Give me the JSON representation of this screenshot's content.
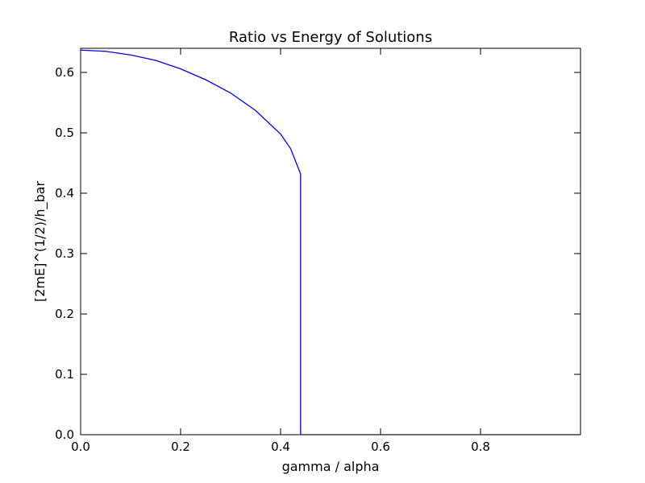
{
  "chart_data": {
    "type": "line",
    "title": "Ratio vs Energy of Solutions",
    "xlabel": "gamma / alpha",
    "ylabel": "[2mE]^(1/2)/h_bar",
    "xlim": [
      0.0,
      1.0
    ],
    "ylim": [
      0.0,
      0.64
    ],
    "x_ticks": [
      0.0,
      0.2,
      0.4,
      0.6,
      0.8
    ],
    "x_tick_labels": [
      "0.0",
      "0.2",
      "0.4",
      "0.6",
      "0.8"
    ],
    "y_ticks": [
      0.0,
      0.1,
      0.2,
      0.3,
      0.4,
      0.5,
      0.6
    ],
    "y_tick_labels": [
      "0.0",
      "0.1",
      "0.2",
      "0.3",
      "0.4",
      "0.5",
      "0.6"
    ],
    "grid": false,
    "legend": "none",
    "colors": {
      "line": "#0000ff",
      "axes": "#000000",
      "background": "#ffffff"
    },
    "series": [
      {
        "x": [
          0.0,
          0.05,
          0.1,
          0.15,
          0.2,
          0.25,
          0.3,
          0.35,
          0.4,
          0.42,
          0.44,
          0.44,
          0.44,
          0.5,
          0.6,
          0.7,
          0.8,
          0.9,
          1.0
        ],
        "y": [
          0.637,
          0.635,
          0.629,
          0.62,
          0.606,
          0.588,
          0.566,
          0.537,
          0.498,
          0.474,
          0.432,
          0.2,
          0.0,
          0.0,
          0.0,
          0.0,
          0.0,
          0.0,
          0.0
        ]
      }
    ]
  }
}
